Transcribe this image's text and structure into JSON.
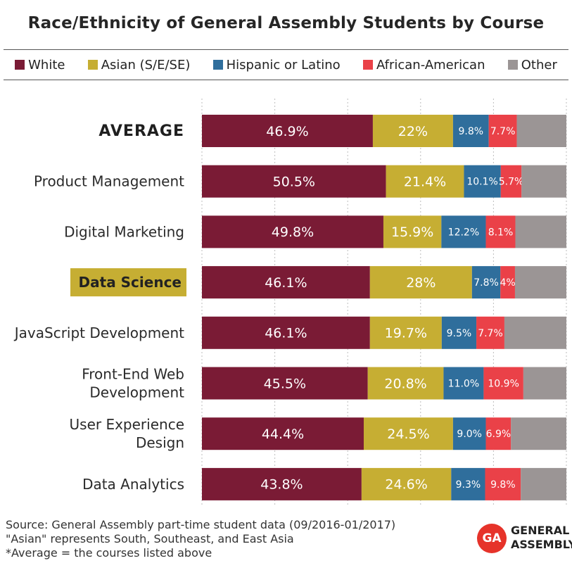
{
  "colors": {
    "White": "#7a1b35",
    "Asian (S/E/SE)": "#c6ae33",
    "Hispanic or Latino": "#2f6e9c",
    "African-American": "#ea4148",
    "Other": "#9b9595",
    "highlight_bg": "#c6ae33",
    "grid": "#bdbdbd"
  },
  "footer": {
    "line1": "Source: General Assembly part-time student data (09/2016-01/2017)",
    "line2": "\"Asian\" represents South, Southeast, and East Asia",
    "line3": "*Average = the courses listed above"
  },
  "logo": {
    "mark": "GA",
    "line1": "GENERAL",
    "line2": "ASSEMBLY"
  },
  "chart_data": {
    "type": "bar",
    "orientation": "horizontal",
    "stacked": true,
    "title": "Race/Ethnicity of General Assembly Students by Course",
    "legend_position": "top",
    "categories": [
      "AVERAGE",
      "Product Management",
      "Digital Marketing",
      "Data Science",
      "JavaScript Development",
      "Front-End Web Development",
      "User Experience Design",
      "Data Analytics"
    ],
    "category_lines": [
      [
        "AVERAGE"
      ],
      [
        "Product Management"
      ],
      [
        "Digital Marketing"
      ],
      [
        "Data Science"
      ],
      [
        "JavaScript Development"
      ],
      [
        "Front-End Web",
        "Development"
      ],
      [
        "User Experience",
        "Design"
      ],
      [
        "Data Analytics"
      ]
    ],
    "highlighted_category": "Data Science",
    "xlim": [
      0,
      100
    ],
    "grid": true,
    "series": [
      {
        "name": "White",
        "values": [
          46.9,
          50.5,
          49.8,
          46.1,
          46.1,
          45.5,
          44.4,
          43.8
        ],
        "labels": [
          "46.9%",
          "50.5%",
          "49.8%",
          "46.1%",
          "46.1%",
          "45.5%",
          "44.4%",
          "43.8%"
        ]
      },
      {
        "name": "Asian (S/E/SE)",
        "values": [
          22,
          21.4,
          15.9,
          28,
          19.7,
          20.8,
          24.5,
          24.6
        ],
        "labels": [
          "22%",
          "21.4%",
          "15.9%",
          "28%",
          "19.7%",
          "20.8%",
          "24.5%",
          "24.6%"
        ]
      },
      {
        "name": "Hispanic or Latino",
        "values": [
          9.8,
          10.1,
          12.2,
          7.8,
          9.5,
          11.0,
          9.0,
          9.3
        ],
        "labels": [
          "9.8%",
          "10.1%",
          "12.2%",
          "7.8%",
          "9.5%",
          "11.0%",
          "9.0%",
          "9.3%"
        ]
      },
      {
        "name": "African-American",
        "values": [
          7.7,
          5.7,
          8.1,
          4,
          7.7,
          10.9,
          6.9,
          9.8
        ],
        "labels": [
          "7.7%",
          "5.7%",
          "8.1%",
          "4%",
          "7.7%",
          "10.9%",
          "6.9%",
          "9.8%"
        ]
      },
      {
        "name": "Other",
        "values": [
          13.6,
          12.3,
          14.0,
          14.1,
          17.0,
          11.8,
          15.2,
          12.5
        ],
        "labels": [
          "",
          "",
          "",
          "",
          "",
          "",
          "",
          ""
        ]
      }
    ]
  }
}
